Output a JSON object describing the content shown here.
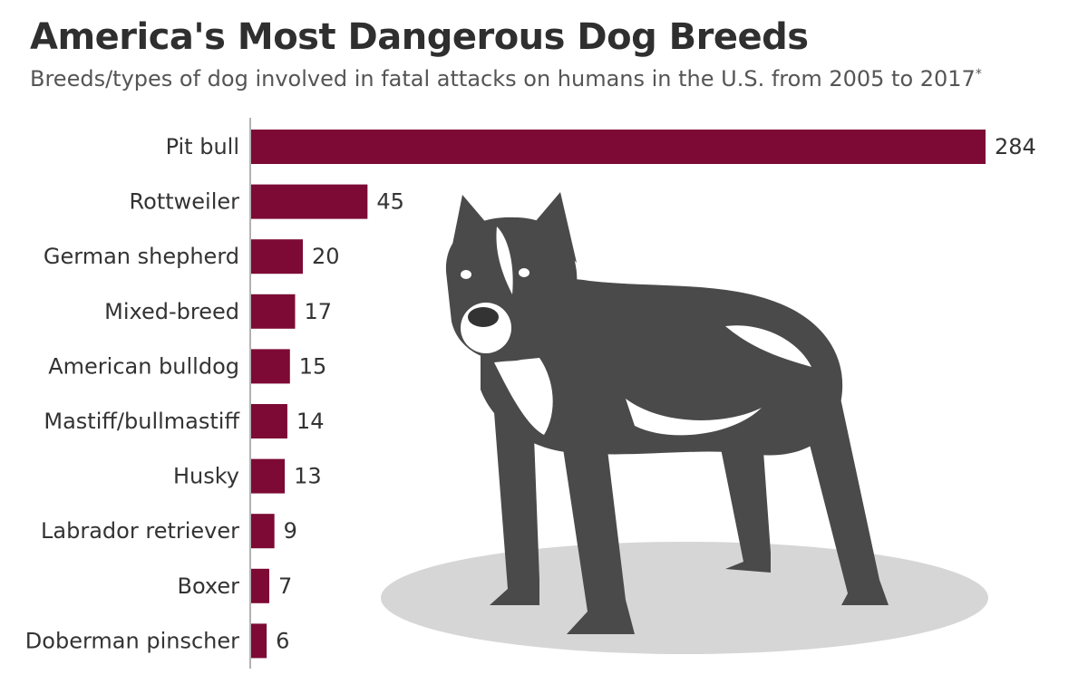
{
  "chart_data": {
    "type": "bar",
    "orientation": "horizontal",
    "title": "America's Most Dangerous Dog Breeds",
    "subtitle": "Breeds/types of dog involved in fatal attacks on humans in the U.S. from 2005 to 2017",
    "footnote_marker": "*",
    "categories": [
      "Pit bull",
      "Rottweiler",
      "German shepherd",
      "Mixed-breed",
      "American bulldog",
      "Mastiff/bullmastiff",
      "Husky",
      "Labrador retriever",
      "Boxer",
      "Doberman pinscher"
    ],
    "values": [
      284,
      45,
      20,
      17,
      15,
      14,
      13,
      9,
      7,
      6
    ],
    "value_labels": [
      "284",
      "45",
      "20",
      "17",
      "15",
      "14",
      "13",
      "9",
      "7",
      "6"
    ],
    "xlim": [
      0,
      284
    ],
    "xlabel": "",
    "ylabel": "",
    "grid": false,
    "bar_color": "#7c0a34"
  },
  "illustration": {
    "icon": "pit-bull-dog-icon"
  },
  "colors": {
    "bar": "#7c0a34",
    "dog": "#4a4a4a",
    "shadow": "#d6d6d6",
    "axis": "#999999"
  }
}
